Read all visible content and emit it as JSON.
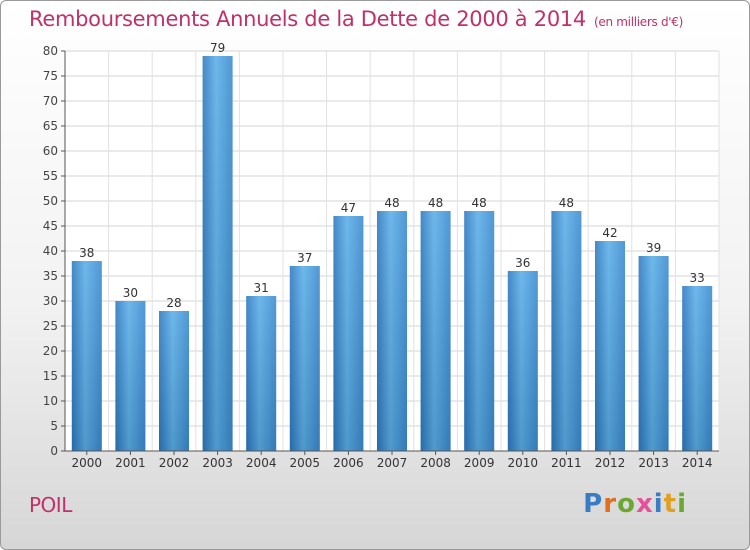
{
  "header": {
    "title": "Remboursements Annuels de la Dette de 2000 à 2014",
    "unit": "(en milliers d'€)"
  },
  "footer": {
    "commune": "POIL",
    "logo": "Proxiti"
  },
  "colors": {
    "bar": "#3d8fd6",
    "title": "#c0306a"
  },
  "chart_data": {
    "type": "bar",
    "title": "Remboursements Annuels de la Dette de 2000 à 2014",
    "subtitle": "(en milliers d'€)",
    "xlabel": "",
    "ylabel": "",
    "categories": [
      "2000",
      "2001",
      "2002",
      "2003",
      "2004",
      "2005",
      "2006",
      "2007",
      "2008",
      "2009",
      "2010",
      "2011",
      "2012",
      "2013",
      "2014"
    ],
    "values": [
      38,
      30,
      28,
      79,
      31,
      37,
      47,
      48,
      48,
      48,
      36,
      48,
      42,
      39,
      33
    ],
    "ylim": [
      0,
      80
    ],
    "yticks": [
      0,
      5,
      10,
      15,
      20,
      25,
      30,
      35,
      40,
      45,
      50,
      55,
      60,
      65,
      70,
      75,
      80
    ],
    "grid": true,
    "data_labels": true
  }
}
